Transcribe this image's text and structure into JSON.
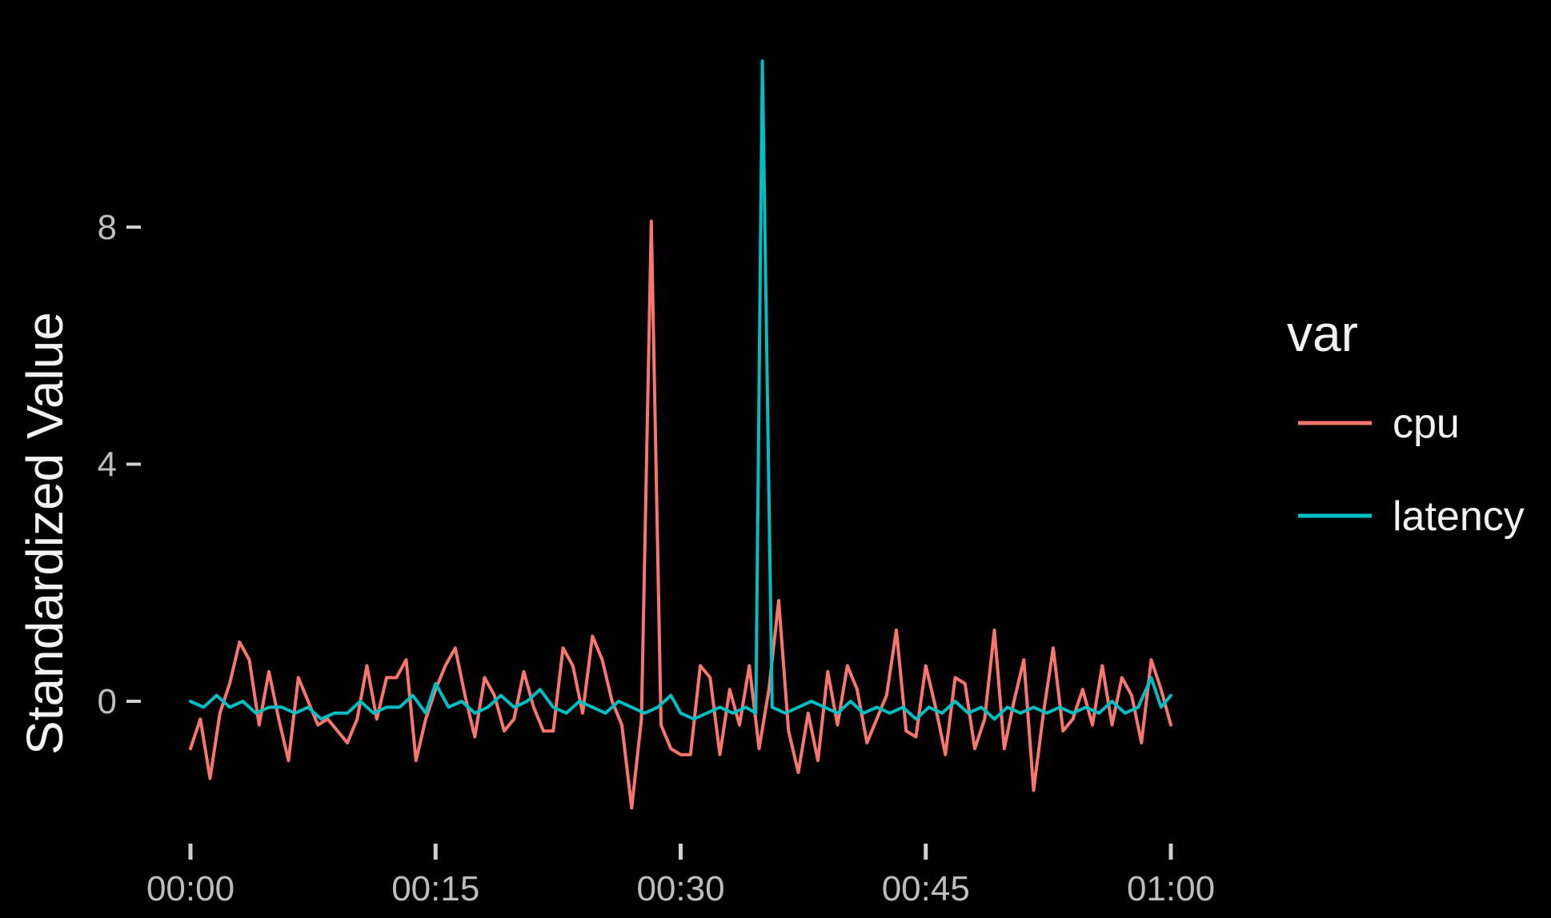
{
  "chart_data": {
    "type": "line",
    "ylabel": "Standardized Value",
    "xlabel": "",
    "x_tick_labels": [
      "00:00",
      "00:15",
      "00:30",
      "00:45",
      "01:00"
    ],
    "x_tick_minutes": [
      0,
      15,
      30,
      45,
      60
    ],
    "y_ticks": [
      0,
      4,
      8
    ],
    "y_tick_labels": [
      "0",
      "4",
      "8"
    ],
    "xlim": [
      0,
      60
    ],
    "ylim": [
      -2,
      11
    ],
    "grid": false,
    "legend": {
      "title": "var",
      "position": "right",
      "entries": [
        "cpu",
        "latency"
      ]
    },
    "series": [
      {
        "name": "cpu",
        "color": "#f8766d",
        "points": [
          [
            0.0,
            -0.8
          ],
          [
            0.6,
            -0.3
          ],
          [
            1.2,
            -1.3
          ],
          [
            1.8,
            -0.2
          ],
          [
            2.4,
            0.3
          ],
          [
            3.0,
            1.0
          ],
          [
            3.6,
            0.7
          ],
          [
            4.2,
            -0.4
          ],
          [
            4.8,
            0.5
          ],
          [
            5.4,
            -0.3
          ],
          [
            6.0,
            -1.0
          ],
          [
            6.6,
            0.4
          ],
          [
            7.2,
            0.0
          ],
          [
            7.8,
            -0.4
          ],
          [
            8.4,
            -0.3
          ],
          [
            9.0,
            -0.5
          ],
          [
            9.6,
            -0.7
          ],
          [
            10.2,
            -0.3
          ],
          [
            10.8,
            0.6
          ],
          [
            11.4,
            -0.3
          ],
          [
            12.0,
            0.4
          ],
          [
            12.6,
            0.4
          ],
          [
            13.2,
            0.7
          ],
          [
            13.8,
            -1.0
          ],
          [
            14.4,
            -0.3
          ],
          [
            15.0,
            0.2
          ],
          [
            15.6,
            0.6
          ],
          [
            16.2,
            0.9
          ],
          [
            16.8,
            0.1
          ],
          [
            17.4,
            -0.6
          ],
          [
            18.0,
            0.4
          ],
          [
            18.6,
            0.1
          ],
          [
            19.2,
            -0.5
          ],
          [
            19.8,
            -0.3
          ],
          [
            20.4,
            0.5
          ],
          [
            21.0,
            -0.1
          ],
          [
            21.6,
            -0.5
          ],
          [
            22.2,
            -0.5
          ],
          [
            22.8,
            0.9
          ],
          [
            23.4,
            0.6
          ],
          [
            24.0,
            -0.2
          ],
          [
            24.6,
            1.1
          ],
          [
            25.2,
            0.7
          ],
          [
            25.8,
            0.0
          ],
          [
            26.4,
            -0.4
          ],
          [
            27.0,
            -1.8
          ],
          [
            27.6,
            -0.3
          ],
          [
            28.2,
            8.1
          ],
          [
            28.8,
            -0.4
          ],
          [
            29.4,
            -0.8
          ],
          [
            30.0,
            -0.9
          ],
          [
            30.6,
            -0.9
          ],
          [
            31.2,
            0.6
          ],
          [
            31.8,
            0.4
          ],
          [
            32.4,
            -0.9
          ],
          [
            33.0,
            0.2
          ],
          [
            33.6,
            -0.4
          ],
          [
            34.2,
            0.6
          ],
          [
            34.8,
            -0.8
          ],
          [
            35.4,
            0.2
          ],
          [
            36.0,
            1.7
          ],
          [
            36.6,
            -0.5
          ],
          [
            37.2,
            -1.2
          ],
          [
            37.8,
            -0.2
          ],
          [
            38.4,
            -1.0
          ],
          [
            39.0,
            0.5
          ],
          [
            39.6,
            -0.4
          ],
          [
            40.2,
            0.6
          ],
          [
            40.8,
            0.2
          ],
          [
            41.4,
            -0.7
          ],
          [
            42.0,
            -0.3
          ],
          [
            42.6,
            0.1
          ],
          [
            43.2,
            1.2
          ],
          [
            43.8,
            -0.5
          ],
          [
            44.4,
            -0.6
          ],
          [
            45.0,
            0.6
          ],
          [
            45.6,
            -0.1
          ],
          [
            46.2,
            -0.9
          ],
          [
            46.8,
            0.4
          ],
          [
            47.4,
            0.3
          ],
          [
            48.0,
            -0.8
          ],
          [
            48.6,
            -0.3
          ],
          [
            49.2,
            1.2
          ],
          [
            49.8,
            -0.8
          ],
          [
            50.4,
            0.0
          ],
          [
            51.0,
            0.7
          ],
          [
            51.6,
            -1.5
          ],
          [
            52.2,
            -0.2
          ],
          [
            52.8,
            0.9
          ],
          [
            53.4,
            -0.5
          ],
          [
            54.0,
            -0.3
          ],
          [
            54.6,
            0.2
          ],
          [
            55.2,
            -0.4
          ],
          [
            55.8,
            0.6
          ],
          [
            56.4,
            -0.4
          ],
          [
            57.0,
            0.4
          ],
          [
            57.6,
            0.1
          ],
          [
            58.2,
            -0.7
          ],
          [
            58.8,
            0.7
          ],
          [
            59.4,
            0.2
          ],
          [
            60.0,
            -0.4
          ]
        ]
      },
      {
        "name": "latency",
        "color": "#00bfc4",
        "points": [
          [
            0.0,
            0.0
          ],
          [
            0.8,
            -0.1
          ],
          [
            1.6,
            0.1
          ],
          [
            2.4,
            -0.1
          ],
          [
            3.2,
            0.0
          ],
          [
            4.0,
            -0.2
          ],
          [
            4.8,
            -0.1
          ],
          [
            5.6,
            -0.1
          ],
          [
            6.4,
            -0.2
          ],
          [
            7.2,
            -0.1
          ],
          [
            8.0,
            -0.3
          ],
          [
            8.8,
            -0.2
          ],
          [
            9.6,
            -0.2
          ],
          [
            10.4,
            0.0
          ],
          [
            11.2,
            -0.2
          ],
          [
            12.0,
            -0.1
          ],
          [
            12.8,
            -0.1
          ],
          [
            13.6,
            0.1
          ],
          [
            14.4,
            -0.2
          ],
          [
            15.0,
            0.3
          ],
          [
            15.8,
            -0.1
          ],
          [
            16.6,
            0.0
          ],
          [
            17.4,
            -0.2
          ],
          [
            18.2,
            -0.1
          ],
          [
            19.0,
            0.1
          ],
          [
            19.8,
            -0.1
          ],
          [
            20.6,
            0.0
          ],
          [
            21.4,
            0.2
          ],
          [
            22.2,
            -0.1
          ],
          [
            23.0,
            -0.2
          ],
          [
            23.8,
            0.0
          ],
          [
            24.6,
            -0.1
          ],
          [
            25.4,
            -0.2
          ],
          [
            26.2,
            0.0
          ],
          [
            27.0,
            -0.1
          ],
          [
            27.8,
            -0.2
          ],
          [
            28.6,
            -0.1
          ],
          [
            29.4,
            0.1
          ],
          [
            30.0,
            -0.2
          ],
          [
            30.8,
            -0.3
          ],
          [
            31.6,
            -0.2
          ],
          [
            32.4,
            -0.1
          ],
          [
            33.2,
            -0.2
          ],
          [
            34.0,
            -0.1
          ],
          [
            34.6,
            -0.2
          ],
          [
            35.0,
            10.8
          ],
          [
            35.6,
            -0.1
          ],
          [
            36.4,
            -0.2
          ],
          [
            37.2,
            -0.1
          ],
          [
            38.0,
            0.0
          ],
          [
            38.8,
            -0.1
          ],
          [
            39.6,
            -0.2
          ],
          [
            40.4,
            0.0
          ],
          [
            41.2,
            -0.2
          ],
          [
            42.0,
            -0.1
          ],
          [
            42.8,
            -0.2
          ],
          [
            43.6,
            -0.1
          ],
          [
            44.4,
            -0.3
          ],
          [
            45.2,
            -0.1
          ],
          [
            46.0,
            -0.2
          ],
          [
            46.8,
            0.0
          ],
          [
            47.6,
            -0.2
          ],
          [
            48.4,
            -0.1
          ],
          [
            49.2,
            -0.3
          ],
          [
            50.0,
            -0.1
          ],
          [
            50.8,
            -0.2
          ],
          [
            51.6,
            -0.1
          ],
          [
            52.4,
            -0.2
          ],
          [
            53.2,
            -0.1
          ],
          [
            54.0,
            -0.2
          ],
          [
            54.8,
            -0.1
          ],
          [
            55.6,
            -0.2
          ],
          [
            56.4,
            0.0
          ],
          [
            57.2,
            -0.2
          ],
          [
            58.0,
            -0.1
          ],
          [
            58.8,
            0.4
          ],
          [
            59.4,
            -0.1
          ],
          [
            60.0,
            0.1
          ]
        ]
      }
    ]
  }
}
